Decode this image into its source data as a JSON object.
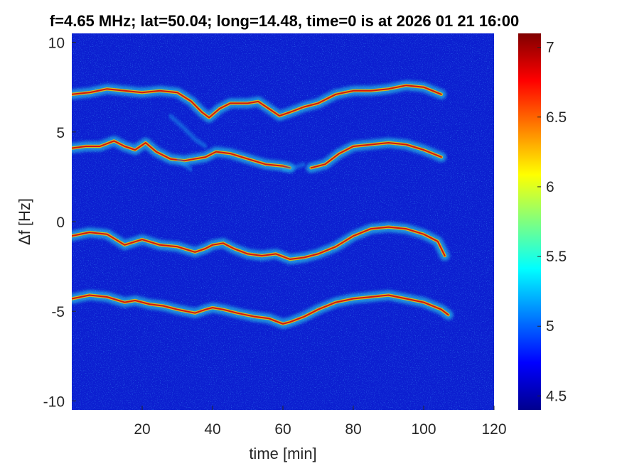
{
  "chart_data": {
    "type": "heatmap",
    "title": "f=4.65 MHz;  lat=50.04; long=14.48, time=0 is at 2026 01 21 16:00",
    "xlabel": "time [min]",
    "ylabel": "Δf [Hz]",
    "xlim": [
      0,
      120
    ],
    "ylim": [
      -10.5,
      10.5
    ],
    "x_ticks": [
      20,
      40,
      60,
      80,
      100,
      120
    ],
    "x_tick_labels": [
      "20",
      "40",
      "60",
      "80",
      "100",
      "120"
    ],
    "y_ticks": [
      10,
      5,
      0,
      -5,
      -10
    ],
    "y_tick_labels": [
      "10",
      "5",
      "0",
      "-5",
      "-10"
    ],
    "colorbar": {
      "colormap": "jet",
      "range": [
        4.4,
        7.1
      ],
      "ticks": [
        7,
        6.5,
        6,
        5.5,
        5,
        4.5
      ],
      "tick_labels": [
        "7",
        "6.5",
        "6",
        "5.5",
        "5",
        "4.5"
      ]
    },
    "background_value": 4.5,
    "series": [
      {
        "points": [
          [
            0,
            7.1
          ],
          [
            5,
            7.2
          ],
          [
            10,
            7.4
          ],
          [
            15,
            7.3
          ],
          [
            20,
            7.2
          ],
          [
            25,
            7.3
          ],
          [
            30,
            7.2
          ],
          [
            34,
            6.7
          ],
          [
            37,
            6.1
          ],
          [
            39,
            5.8
          ],
          [
            42,
            6.3
          ],
          [
            45,
            6.6
          ],
          [
            50,
            6.6
          ],
          [
            53,
            6.7
          ],
          [
            56,
            6.3
          ],
          [
            59,
            5.9
          ],
          [
            62,
            6.1
          ],
          [
            66,
            6.4
          ],
          [
            70,
            6.6
          ],
          [
            75,
            7.1
          ],
          [
            80,
            7.3
          ],
          [
            85,
            7.3
          ],
          [
            90,
            7.4
          ],
          [
            95,
            7.6
          ],
          [
            100,
            7.5
          ],
          [
            105,
            7.1
          ]
        ]
      },
      {
        "points": [
          [
            0,
            4.1
          ],
          [
            4,
            4.2
          ],
          [
            8,
            4.2
          ],
          [
            12,
            4.5
          ],
          [
            15,
            4.2
          ],
          [
            18,
            4.0
          ],
          [
            21,
            4.4
          ],
          [
            24,
            3.9
          ],
          [
            28,
            3.5
          ],
          [
            32,
            3.4
          ],
          [
            35,
            3.5
          ],
          [
            38,
            3.6
          ],
          [
            41,
            3.9
          ],
          [
            45,
            3.8
          ],
          [
            50,
            3.5
          ],
          [
            55,
            3.2
          ],
          [
            60,
            3.1
          ],
          [
            62,
            3.0
          ]
        ]
      },
      {
        "points": [
          [
            68,
            3.0
          ],
          [
            72,
            3.2
          ],
          [
            76,
            3.8
          ],
          [
            80,
            4.2
          ],
          [
            85,
            4.3
          ],
          [
            90,
            4.4
          ],
          [
            95,
            4.3
          ],
          [
            100,
            4.0
          ],
          [
            105,
            3.6
          ]
        ]
      },
      {
        "points": [
          [
            0,
            -0.8
          ],
          [
            5,
            -0.6
          ],
          [
            10,
            -0.7
          ],
          [
            15,
            -1.3
          ],
          [
            20,
            -1.0
          ],
          [
            25,
            -1.3
          ],
          [
            30,
            -1.4
          ],
          [
            35,
            -1.7
          ],
          [
            38,
            -1.5
          ],
          [
            40,
            -1.3
          ],
          [
            43,
            -1.2
          ],
          [
            46,
            -1.5
          ],
          [
            50,
            -1.8
          ],
          [
            54,
            -1.9
          ],
          [
            58,
            -1.8
          ],
          [
            62,
            -2.1
          ],
          [
            66,
            -2.0
          ],
          [
            70,
            -1.8
          ],
          [
            75,
            -1.4
          ],
          [
            80,
            -0.8
          ],
          [
            85,
            -0.4
          ],
          [
            90,
            -0.3
          ],
          [
            95,
            -0.4
          ],
          [
            100,
            -0.7
          ],
          [
            104,
            -1.1
          ],
          [
            106,
            -1.9
          ]
        ]
      },
      {
        "points": [
          [
            0,
            -4.3
          ],
          [
            5,
            -4.1
          ],
          [
            10,
            -4.2
          ],
          [
            15,
            -4.5
          ],
          [
            18,
            -4.4
          ],
          [
            22,
            -4.6
          ],
          [
            26,
            -4.7
          ],
          [
            30,
            -4.9
          ],
          [
            35,
            -5.1
          ],
          [
            38,
            -4.9
          ],
          [
            40,
            -4.8
          ],
          [
            43,
            -4.9
          ],
          [
            47,
            -5.1
          ],
          [
            52,
            -5.3
          ],
          [
            56,
            -5.4
          ],
          [
            60,
            -5.7
          ],
          [
            62,
            -5.6
          ],
          [
            66,
            -5.3
          ],
          [
            70,
            -4.9
          ],
          [
            75,
            -4.5
          ],
          [
            80,
            -4.3
          ],
          [
            85,
            -4.2
          ],
          [
            90,
            -4.1
          ],
          [
            95,
            -4.3
          ],
          [
            100,
            -4.5
          ],
          [
            105,
            -4.9
          ],
          [
            107,
            -5.2
          ]
        ]
      },
      {
        "points": [
          [
            28,
            5.9
          ],
          [
            32,
            5.2
          ],
          [
            35,
            4.6
          ],
          [
            38,
            4.2
          ]
        ]
      },
      {
        "points": [
          [
            30,
            3.5
          ],
          [
            32,
            3.2
          ],
          [
            34,
            2.9
          ]
        ]
      },
      {
        "points": [
          [
            60,
            2.9
          ],
          [
            63,
            3.0
          ],
          [
            66,
            3.2
          ]
        ]
      }
    ]
  }
}
